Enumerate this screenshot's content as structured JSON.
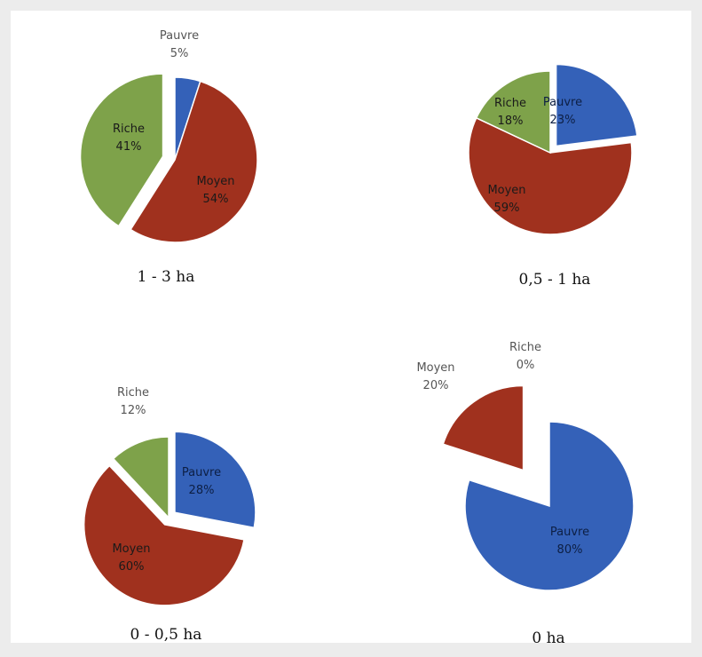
{
  "chart_data": [
    {
      "type": "pie",
      "title": "1 - 3 ha",
      "categories": [
        "Pauvre",
        "Moyen",
        "Riche"
      ],
      "values": [
        5,
        54,
        41
      ],
      "data_labels": [
        "5%",
        "54%",
        "41%"
      ],
      "colors": [
        "#3461b8",
        "#a0311e",
        "#7ea24a"
      ],
      "exploded": [
        "Riche"
      ]
    },
    {
      "type": "pie",
      "title": "0,5 - 1 ha",
      "categories": [
        "Pauvre",
        "Moyen",
        "Riche"
      ],
      "values": [
        23,
        59,
        18
      ],
      "data_labels": [
        "23%",
        "59%",
        "18%"
      ],
      "colors": [
        "#3461b8",
        "#a0311e",
        "#7ea24a"
      ],
      "exploded": [
        "Pauvre"
      ]
    },
    {
      "type": "pie",
      "title": "0 - 0,5 ha",
      "categories": [
        "Pauvre",
        "Moyen",
        "Riche"
      ],
      "values": [
        28,
        60,
        12
      ],
      "data_labels": [
        "28%",
        "60%",
        "12%"
      ],
      "colors": [
        "#3461b8",
        "#a0311e",
        "#7ea24a"
      ],
      "exploded": [
        "Pauvre",
        "Moyen"
      ]
    },
    {
      "type": "pie",
      "title": "0 ha",
      "categories": [
        "Pauvre",
        "Moyen",
        "Riche"
      ],
      "values": [
        80,
        20,
        0
      ],
      "data_labels": [
        "80%",
        "20%",
        "0%"
      ],
      "colors": [
        "#3461b8",
        "#a0311e",
        "#7ea24a"
      ],
      "exploded": [
        "Moyen"
      ]
    }
  ]
}
